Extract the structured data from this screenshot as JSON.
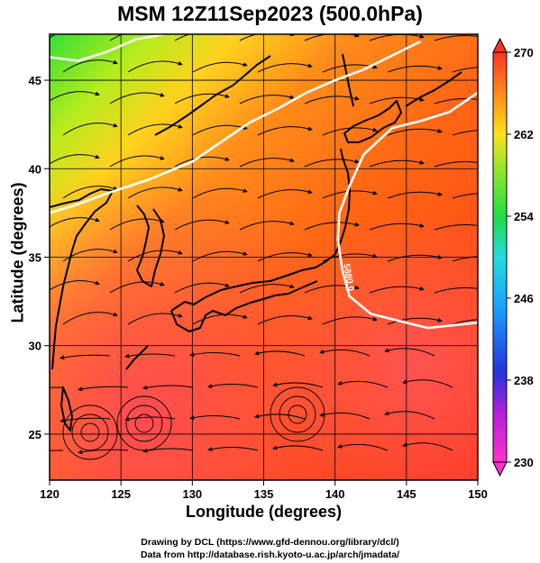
{
  "title": "MSM 12Z11Sep2023 (500.0hPa)",
  "credit_line1": "Drawing by DCL (https://www.gfd-dennou.org/library/dcl/)",
  "credit_line2": "Data from http://database.rish.kyoto-u.ac.jp/arch/jmadata/",
  "chart_data": {
    "type": "heatmap",
    "title": "MSM 12Z11Sep2023 (500.0hPa)",
    "xlabel": "Longitude (degrees)",
    "ylabel": "Latitude  (degrees)",
    "xlim": [
      120,
      150
    ],
    "ylim": [
      22.4,
      47.6
    ],
    "x_ticks": [
      120,
      125,
      130,
      135,
      140,
      145,
      150
    ],
    "y_ticks": [
      25,
      30,
      35,
      40,
      45
    ],
    "grid": true,
    "colorbar": {
      "min": 230,
      "max": 270,
      "ticks": [
        230,
        238,
        246,
        254,
        262,
        270
      ]
    },
    "contours": [
      {
        "label": "5880.0",
        "points": [
          [
            120,
            37.5
          ],
          [
            122,
            38.0
          ],
          [
            124,
            38.6
          ],
          [
            127,
            39.4
          ],
          [
            130,
            40.4
          ],
          [
            132,
            41.5
          ],
          [
            134,
            42.6
          ],
          [
            136,
            43.4
          ],
          [
            138,
            44.3
          ],
          [
            140,
            45.0
          ],
          [
            142,
            45.6
          ],
          [
            144,
            46.4
          ],
          [
            146,
            47.2
          ]
        ]
      },
      {
        "label": "5880.0",
        "points": [
          [
            120,
            46.3
          ],
          [
            122,
            46.1
          ],
          [
            124,
            46.6
          ],
          [
            126,
            47.3
          ],
          [
            128,
            47.6
          ]
        ]
      },
      {
        "label": "5880.0",
        "points": [
          [
            150,
            44.3
          ],
          [
            148,
            43.2
          ],
          [
            146,
            42.7
          ],
          [
            144,
            42.3
          ],
          [
            142,
            40.8
          ],
          [
            141,
            39.0
          ],
          [
            140.3,
            37.5
          ],
          [
            140.2,
            36.0
          ],
          [
            140.5,
            34.3
          ],
          [
            141.0,
            32.8
          ],
          [
            142.5,
            31.8
          ],
          [
            144.5,
            31.4
          ],
          [
            146.5,
            31.0
          ],
          [
            150,
            31.3
          ]
        ]
      }
    ],
    "features": [
      "temperature shading",
      "wind streamlines",
      "coastlines",
      "geopotential height contours"
    ]
  }
}
